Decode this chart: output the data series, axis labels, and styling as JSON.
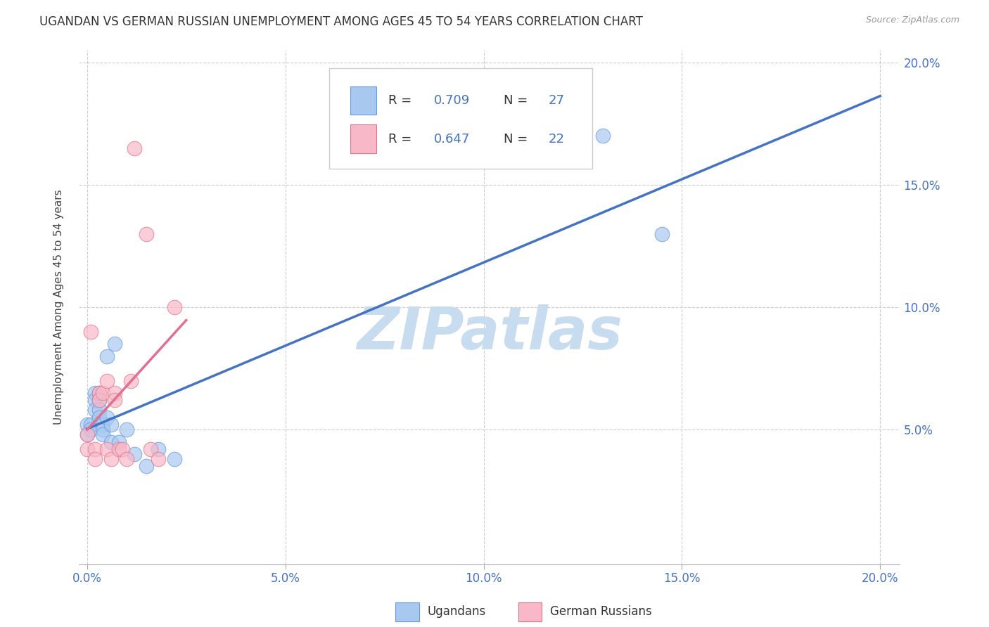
{
  "title": "UGANDAN VS GERMAN RUSSIAN UNEMPLOYMENT AMONG AGES 45 TO 54 YEARS CORRELATION CHART",
  "source": "Source: ZipAtlas.com",
  "ylabel": "Unemployment Among Ages 45 to 54 years",
  "xlabel_ugandans": "Ugandans",
  "xlabel_german_russians": "German Russians",
  "xlim": [
    -0.002,
    0.205
  ],
  "ylim": [
    -0.005,
    0.205
  ],
  "xticks": [
    0.0,
    0.05,
    0.1,
    0.15,
    0.2
  ],
  "yticks": [
    0.05,
    0.1,
    0.15,
    0.2
  ],
  "xtick_labels": [
    "0.0%",
    "5.0%",
    "10.0%",
    "15.0%",
    "20.0%"
  ],
  "ytick_labels_right": [
    "5.0%",
    "10.0%",
    "15.0%",
    "20.0%"
  ],
  "legend_r1": "R = 0.709",
  "legend_n1": "N = 27",
  "legend_r2": "R = 0.647",
  "legend_n2": "N = 22",
  "color_ugandan": "#A8C8F0",
  "color_ugandan_edge": "#6699DD",
  "color_german": "#F8B8C8",
  "color_german_edge": "#DD7788",
  "color_line_ugandan": "#4472C4",
  "color_line_german": "#E07090",
  "color_tick": "#4472C4",
  "ugandan_x": [
    0.0,
    0.0,
    0.001,
    0.001,
    0.002,
    0.002,
    0.002,
    0.003,
    0.003,
    0.003,
    0.003,
    0.004,
    0.004,
    0.004,
    0.005,
    0.005,
    0.006,
    0.006,
    0.007,
    0.008,
    0.01,
    0.012,
    0.015,
    0.018,
    0.022,
    0.13,
    0.145
  ],
  "ugandan_y": [
    0.052,
    0.048,
    0.052,
    0.05,
    0.065,
    0.062,
    0.058,
    0.065,
    0.062,
    0.058,
    0.055,
    0.052,
    0.05,
    0.048,
    0.08,
    0.055,
    0.052,
    0.045,
    0.085,
    0.045,
    0.05,
    0.04,
    0.035,
    0.042,
    0.038,
    0.17,
    0.13
  ],
  "german_x": [
    0.0,
    0.0,
    0.001,
    0.002,
    0.002,
    0.003,
    0.003,
    0.004,
    0.005,
    0.005,
    0.006,
    0.007,
    0.007,
    0.008,
    0.009,
    0.01,
    0.011,
    0.012,
    0.015,
    0.016,
    0.018,
    0.022
  ],
  "german_y": [
    0.048,
    0.042,
    0.09,
    0.042,
    0.038,
    0.065,
    0.062,
    0.065,
    0.07,
    0.042,
    0.038,
    0.065,
    0.062,
    0.042,
    0.042,
    0.038,
    0.07,
    0.165,
    0.13,
    0.042,
    0.038,
    0.1
  ],
  "background_color": "#FFFFFF",
  "grid_color": "#CCCCCC",
  "watermark_text": "ZIPatlas",
  "watermark_color": "#C8DCF0",
  "watermark_fontsize": 60,
  "scatter_size": 220
}
